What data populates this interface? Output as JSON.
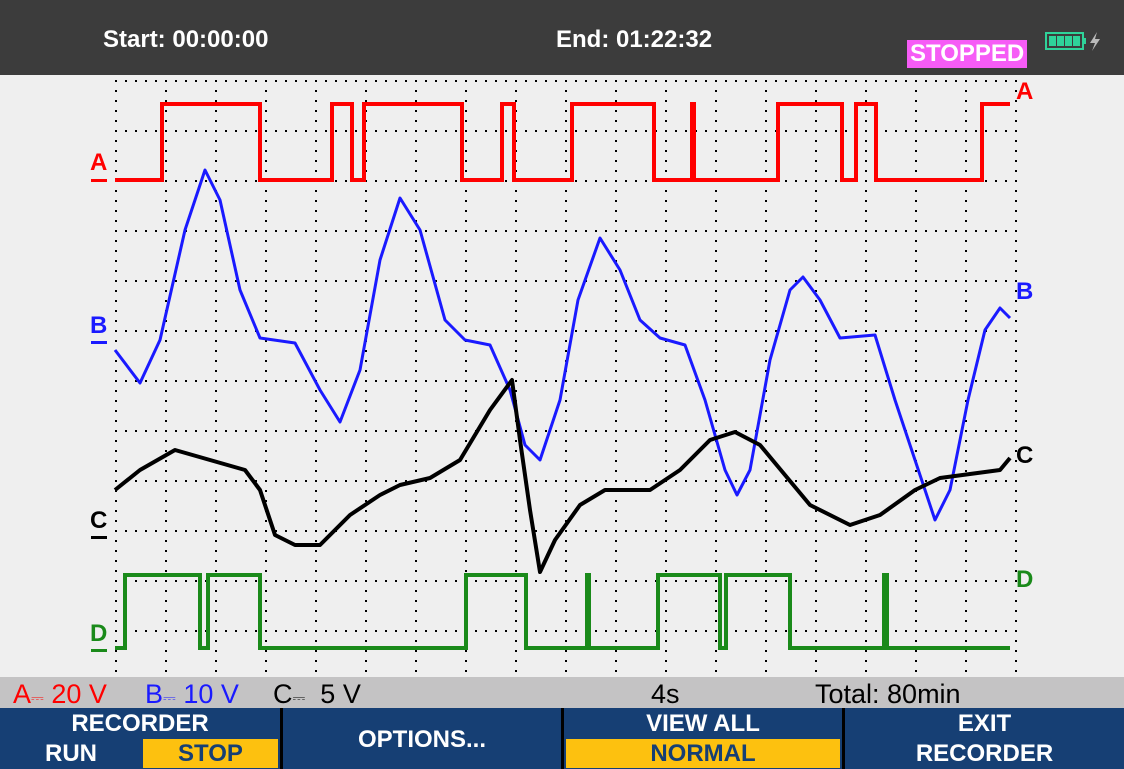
{
  "header": {
    "start": "Start: 00:00:00",
    "end": "End: 01:22:32",
    "status": "STOPPED",
    "battery_icon": "battery-charging-icon"
  },
  "colors": {
    "A": "#ff0000",
    "B": "#1a1aff",
    "C": "#000000",
    "D": "#1a8a1a",
    "header_bg": "#3c3c3c",
    "softkey_bg": "#163f74",
    "highlight": "#fdc10f",
    "status_bg": "#f65cf6"
  },
  "traces": {
    "A": "A",
    "B": "B",
    "C": "C",
    "D": "D"
  },
  "info": {
    "a_scale": "A",
    "a_value": "20 V",
    "b_scale": "B",
    "b_value": "10 V",
    "c_scale": "C",
    "c_value": "5 V",
    "dc_symbol": "⎓",
    "timebase": "4s",
    "total": "Total:  80min"
  },
  "softkeys": [
    {
      "top": "RECORDER",
      "left": "RUN",
      "right": "STOP"
    },
    {
      "label": "OPTIONS..."
    },
    {
      "top": "VIEW ALL",
      "bottom": "NORMAL"
    },
    {
      "top": "EXIT",
      "bottom": "RECORDER"
    }
  ]
}
